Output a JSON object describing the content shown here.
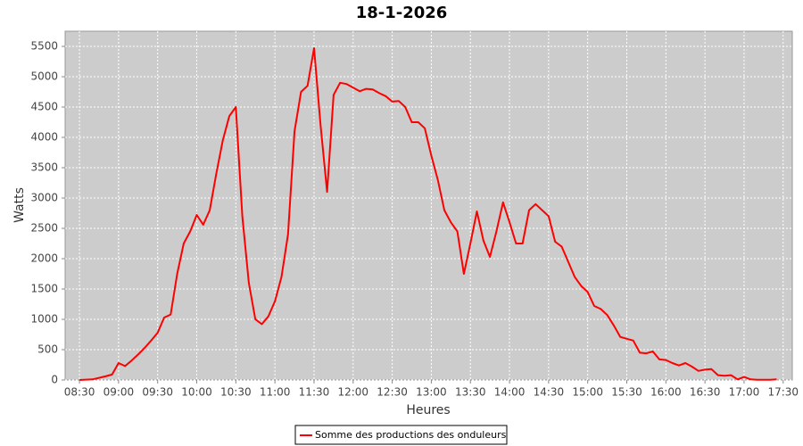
{
  "chart_data": {
    "type": "line",
    "title": "18-1-2026",
    "x_label": "Heures",
    "y_label": "Watts",
    "x": [
      "08:30",
      "08:40",
      "08:50",
      "08:55",
      "09:00",
      "09:05",
      "09:10",
      "09:15",
      "09:20",
      "09:25",
      "09:30",
      "09:35",
      "09:40",
      "09:45",
      "09:50",
      "09:55",
      "10:00",
      "10:05",
      "10:10",
      "10:15",
      "10:20",
      "10:25",
      "10:30",
      "10:35",
      "10:40",
      "10:45",
      "10:50",
      "10:55",
      "11:00",
      "11:05",
      "11:10",
      "11:15",
      "11:20",
      "11:25",
      "11:30",
      "11:35",
      "11:40",
      "11:45",
      "11:50",
      "11:55",
      "12:00",
      "12:05",
      "12:10",
      "12:15",
      "12:20",
      "12:25",
      "12:30",
      "12:35",
      "12:40",
      "12:45",
      "12:50",
      "12:55",
      "13:00",
      "13:05",
      "13:10",
      "13:15",
      "13:20",
      "13:25",
      "13:30",
      "13:35",
      "13:40",
      "13:45",
      "13:50",
      "13:55",
      "14:00",
      "14:05",
      "14:10",
      "14:15",
      "14:20",
      "14:25",
      "14:30",
      "14:35",
      "14:40",
      "14:45",
      "14:50",
      "14:55",
      "15:00",
      "15:05",
      "15:10",
      "15:15",
      "15:20",
      "15:25",
      "15:30",
      "15:35",
      "15:40",
      "15:45",
      "15:50",
      "15:55",
      "16:00",
      "16:05",
      "16:10",
      "16:15",
      "16:20",
      "16:25",
      "16:30",
      "16:35",
      "16:40",
      "16:45",
      "16:50",
      "16:55",
      "17:00",
      "17:05",
      "17:10",
      "17:15",
      "17:20",
      "17:25"
    ],
    "series": [
      {
        "name": "Somme des productions des onduleurs",
        "color": "#ff0000",
        "values": [
          0,
          10,
          60,
          90,
          280,
          230,
          320,
          420,
          530,
          650,
          780,
          1030,
          1080,
          1750,
          2250,
          2450,
          2720,
          2560,
          2800,
          3400,
          3950,
          4350,
          4500,
          2700,
          1600,
          1000,
          920,
          1050,
          1300,
          1700,
          2400,
          4100,
          4750,
          4850,
          5470,
          4200,
          3100,
          4700,
          4900,
          4880,
          4820,
          4760,
          4800,
          4790,
          4730,
          4680,
          4590,
          4600,
          4500,
          4250,
          4250,
          4150,
          3700,
          3300,
          2800,
          2600,
          2450,
          1750,
          2250,
          2780,
          2300,
          2030,
          2450,
          2930,
          2600,
          2250,
          2250,
          2800,
          2900,
          2800,
          2700,
          2280,
          2200,
          1950,
          1700,
          1550,
          1450,
          1220,
          1170,
          1070,
          900,
          710,
          680,
          650,
          450,
          440,
          470,
          340,
          330,
          280,
          240,
          280,
          220,
          150,
          170,
          180,
          80,
          70,
          80,
          10,
          50,
          10,
          5,
          5,
          5,
          10
        ]
      }
    ],
    "xlim": [
      "08:19",
      "17:37"
    ],
    "xticks": [
      "08:30",
      "09:00",
      "09:30",
      "10:00",
      "10:30",
      "11:00",
      "11:30",
      "12:00",
      "12:30",
      "13:00",
      "13:30",
      "14:00",
      "14:30",
      "15:00",
      "15:30",
      "16:00",
      "16:30",
      "17:00",
      "17:30"
    ],
    "ylim": [
      0,
      5750
    ],
    "yticks": [
      0,
      500,
      1000,
      1500,
      2000,
      2500,
      3000,
      3500,
      4000,
      4500,
      5000,
      5500
    ],
    "grid": true,
    "legend": "bottom"
  }
}
